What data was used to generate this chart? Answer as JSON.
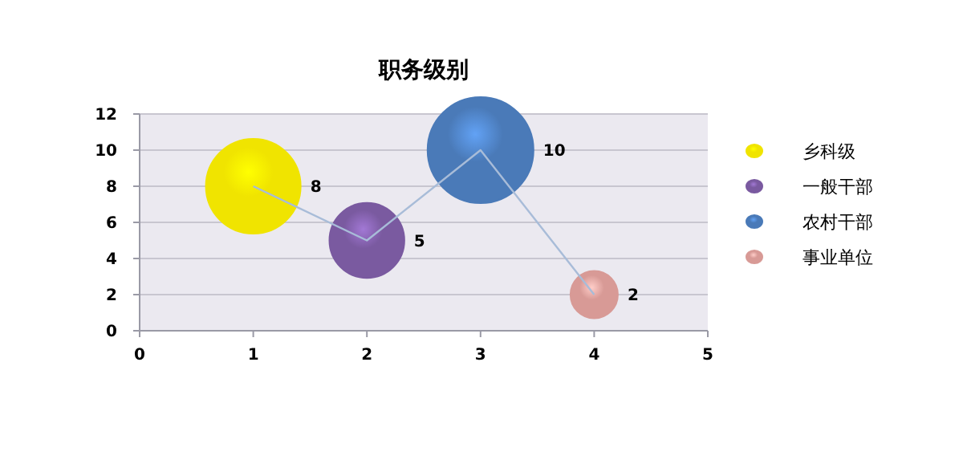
{
  "chart_data": {
    "type": "bubble",
    "title": "职务级别",
    "series": [
      {
        "type": "line",
        "color": "#a8bcd8",
        "x": [
          1,
          2,
          3,
          4
        ],
        "values": [
          8,
          5,
          10,
          2
        ],
        "value_labels": [
          null,
          null,
          null,
          null
        ]
      },
      {
        "type": "bubble",
        "name": "乡科级",
        "color": "#f0e400",
        "x": [
          1
        ],
        "values": [
          8
        ],
        "sizes": [
          0.8
        ]
      },
      {
        "type": "bubble",
        "name": "一般干部",
        "color": "#7a5aa0",
        "x": [
          2
        ],
        "values": [
          5
        ],
        "sizes": [
          0.5
        ]
      },
      {
        "type": "bubble",
        "name": "农村干部",
        "color": "#4a7ab8",
        "x": [
          3
        ],
        "values": [
          10
        ],
        "sizes": [
          1
        ]
      },
      {
        "type": "bubble",
        "name": "事业单位",
        "color": "#d89a96",
        "x": [
          4
        ],
        "values": [
          2
        ],
        "sizes": [
          0.2
        ]
      }
    ],
    "xlim": [
      0,
      5
    ],
    "xticks": [
      0,
      1,
      2,
      3,
      4,
      5
    ],
    "ylim": [
      0,
      12
    ],
    "yticks": [
      0,
      2,
      4,
      6,
      8,
      10,
      12
    ],
    "grid": "y",
    "legend": "right",
    "data_labels": true
  }
}
